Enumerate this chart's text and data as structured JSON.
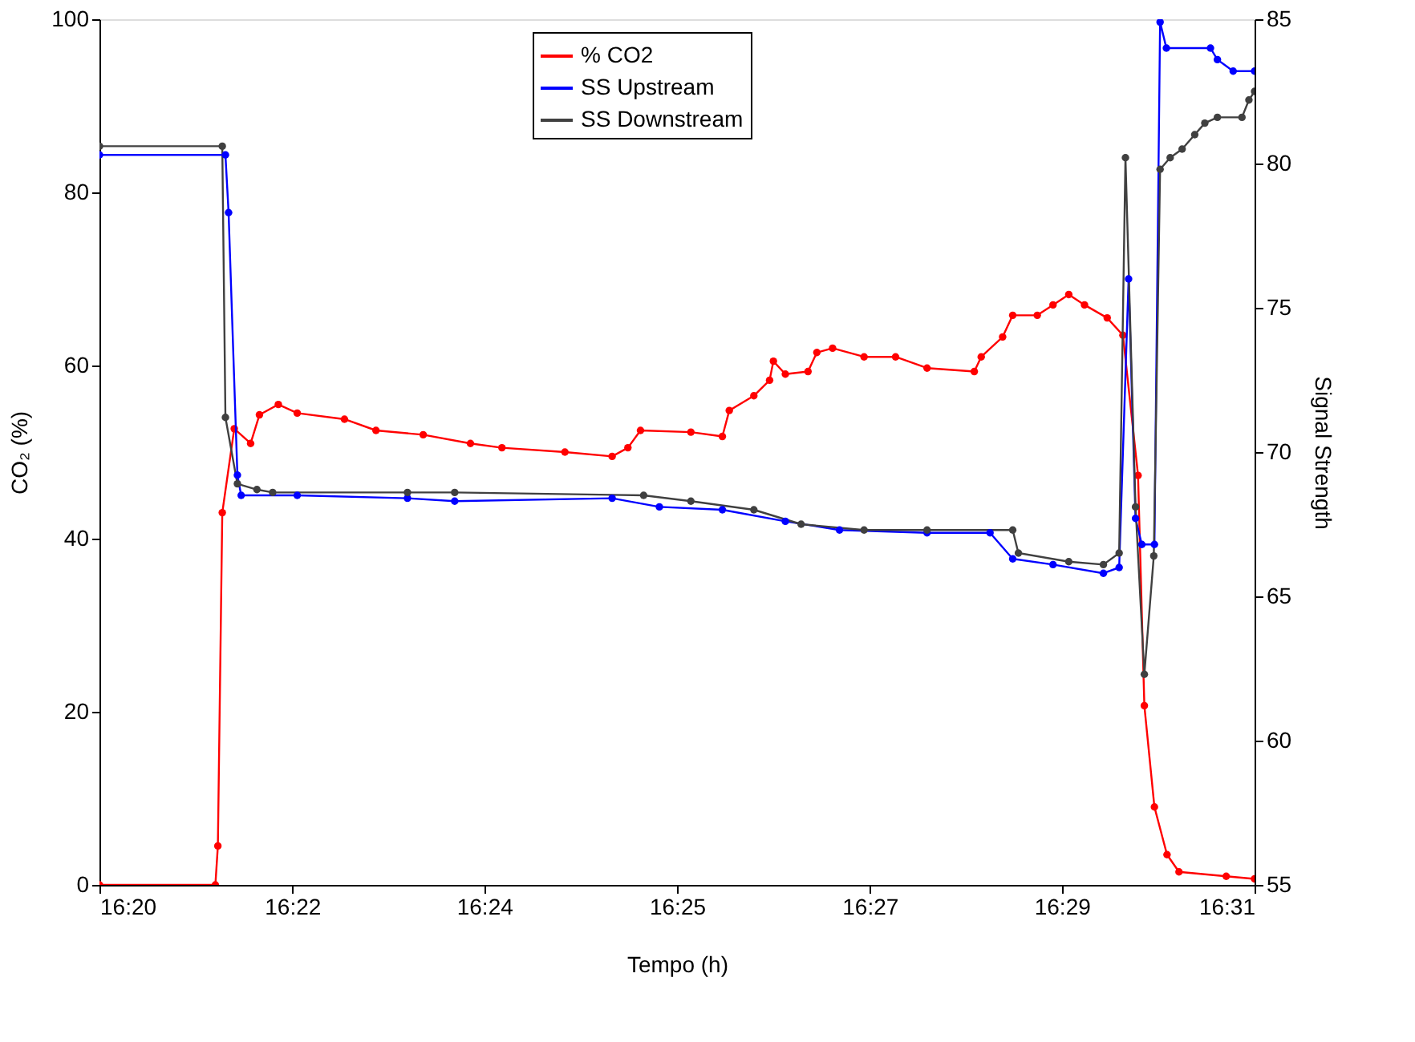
{
  "chart_data": {
    "type": "line",
    "xlabel": "Tempo (h)",
    "ylabel": "CO₂ (%)",
    "y2label": "Signal Strength",
    "x": [
      16.3333,
      16.3517,
      16.3521,
      16.3528,
      16.3547,
      16.3573,
      16.3587,
      16.3617,
      16.3647,
      16.3722,
      16.3772,
      16.3847,
      16.3922,
      16.3972,
      16.4072,
      16.4147,
      16.4172,
      16.4192,
      16.4272,
      16.4322,
      16.4333,
      16.4372,
      16.4397,
      16.4403,
      16.4422,
      16.4458,
      16.4472,
      16.4497,
      16.4547,
      16.4597,
      16.4647,
      16.4722,
      16.4733,
      16.4767,
      16.4783,
      16.4822,
      16.4847,
      16.4872,
      16.4897,
      16.4933,
      16.4958,
      16.4982,
      16.4992,
      16.5008,
      16.5028,
      16.5047,
      16.5122,
      16.5167
    ],
    "series": [
      {
        "name": "% CO2",
        "color": "#ff0000",
        "values": [
          0,
          0,
          4.5,
          43,
          52.7,
          51,
          54.3,
          55.5,
          54.5,
          53.8,
          52.5,
          52.0,
          51.0,
          50.5,
          50.0,
          49.5,
          50.5,
          52.5,
          52.3,
          51.8,
          54.8,
          56.5,
          58.3,
          60.5,
          59.0,
          59.3,
          61.5,
          62.0,
          61.0,
          61.0,
          59.7,
          59.3,
          61.0,
          63.3,
          65.8,
          65.8,
          67.0,
          68.2,
          67.0,
          65.5,
          63.5,
          47.3,
          20.7,
          9,
          3.5,
          1.5,
          1.0,
          0.7
        ]
      },
      {
        "name": "SS Upstream",
        "color": "#0000ff",
        "axis": "y2",
        "x": [
          16.3333,
          16.3533,
          16.3538,
          16.3552,
          16.3558,
          16.3647,
          16.3822,
          16.3897,
          16.4147,
          16.4222,
          16.4322,
          16.4422,
          16.4508,
          16.4647,
          16.4747,
          16.4783,
          16.4847,
          16.4927,
          16.4952,
          16.4967,
          16.4978,
          16.4988,
          16.5008,
          16.5017,
          16.5027,
          16.5097,
          16.5108,
          16.5133,
          16.5167
        ],
        "values": [
          80.3,
          80.3,
          78.3,
          69.2,
          68.5,
          68.5,
          68.4,
          68.3,
          68.4,
          68.1,
          68.0,
          67.6,
          67.3,
          67.2,
          67.2,
          66.3,
          66.1,
          65.8,
          66.0,
          76.0,
          67.7,
          66.8,
          66.8,
          84.9,
          84.0,
          84.0,
          83.6,
          83.2,
          83.2
        ]
      },
      {
        "name": "SS Downstream",
        "color": "#404040",
        "axis": "y2",
        "x": [
          16.3333,
          16.3528,
          16.3533,
          16.3552,
          16.3583,
          16.3608,
          16.3822,
          16.3897,
          16.4197,
          16.4272,
          16.4372,
          16.4447,
          16.4547,
          16.4647,
          16.4783,
          16.4792,
          16.4872,
          16.4927,
          16.4952,
          16.4962,
          16.4978,
          16.4992,
          16.5007,
          16.5017,
          16.5033,
          16.5052,
          16.5072,
          16.5088,
          16.5108,
          16.5147,
          16.5158,
          16.5167
        ],
        "values": [
          80.6,
          80.6,
          71.2,
          68.9,
          68.7,
          68.6,
          68.6,
          68.6,
          68.5,
          68.3,
          68.0,
          67.5,
          67.3,
          67.3,
          67.3,
          66.5,
          66.2,
          66.1,
          66.5,
          80.2,
          68.1,
          62.3,
          66.4,
          79.8,
          80.2,
          80.5,
          81.0,
          81.4,
          81.6,
          81.6,
          82.2,
          82.5
        ]
      }
    ],
    "xlim": [
      16.3333,
      16.5167
    ],
    "xticks": [
      {
        "value": 16.3333,
        "label": "16:20"
      },
      {
        "value": 16.3639,
        "label": "16:22"
      },
      {
        "value": 16.3944,
        "label": "16:24"
      },
      {
        "value": 16.425,
        "label": "16:25"
      },
      {
        "value": 16.4556,
        "label": "16:27"
      },
      {
        "value": 16.4861,
        "label": "16:29"
      },
      {
        "value": 16.5167,
        "label": "16:31"
      }
    ],
    "ylim": [
      0,
      100
    ],
    "yticks": [
      0,
      20,
      40,
      60,
      80,
      100
    ],
    "y2lim": [
      55,
      85
    ],
    "y2ticks": [
      55,
      60,
      65,
      70,
      75,
      80,
      85
    ],
    "legend": "top",
    "marker": "circle",
    "line_style": "solid",
    "grid": false
  }
}
